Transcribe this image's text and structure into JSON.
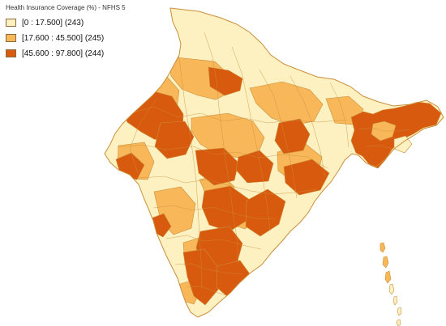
{
  "legend": {
    "title": "Health Insurance Coverage (%) - NFHS 5",
    "classes": [
      {
        "label": "[0 : 17.500]  (243)",
        "color": "#fdf1c2"
      },
      {
        "label": "[17.600 : 45.500]  (245)",
        "color": "#f8b85a"
      },
      {
        "label": "[45.600 : 97.800]  (244)",
        "color": "#d85a0f"
      }
    ]
  },
  "colors": {
    "boundary": "#c98f3b",
    "background": "#ffffff"
  }
}
